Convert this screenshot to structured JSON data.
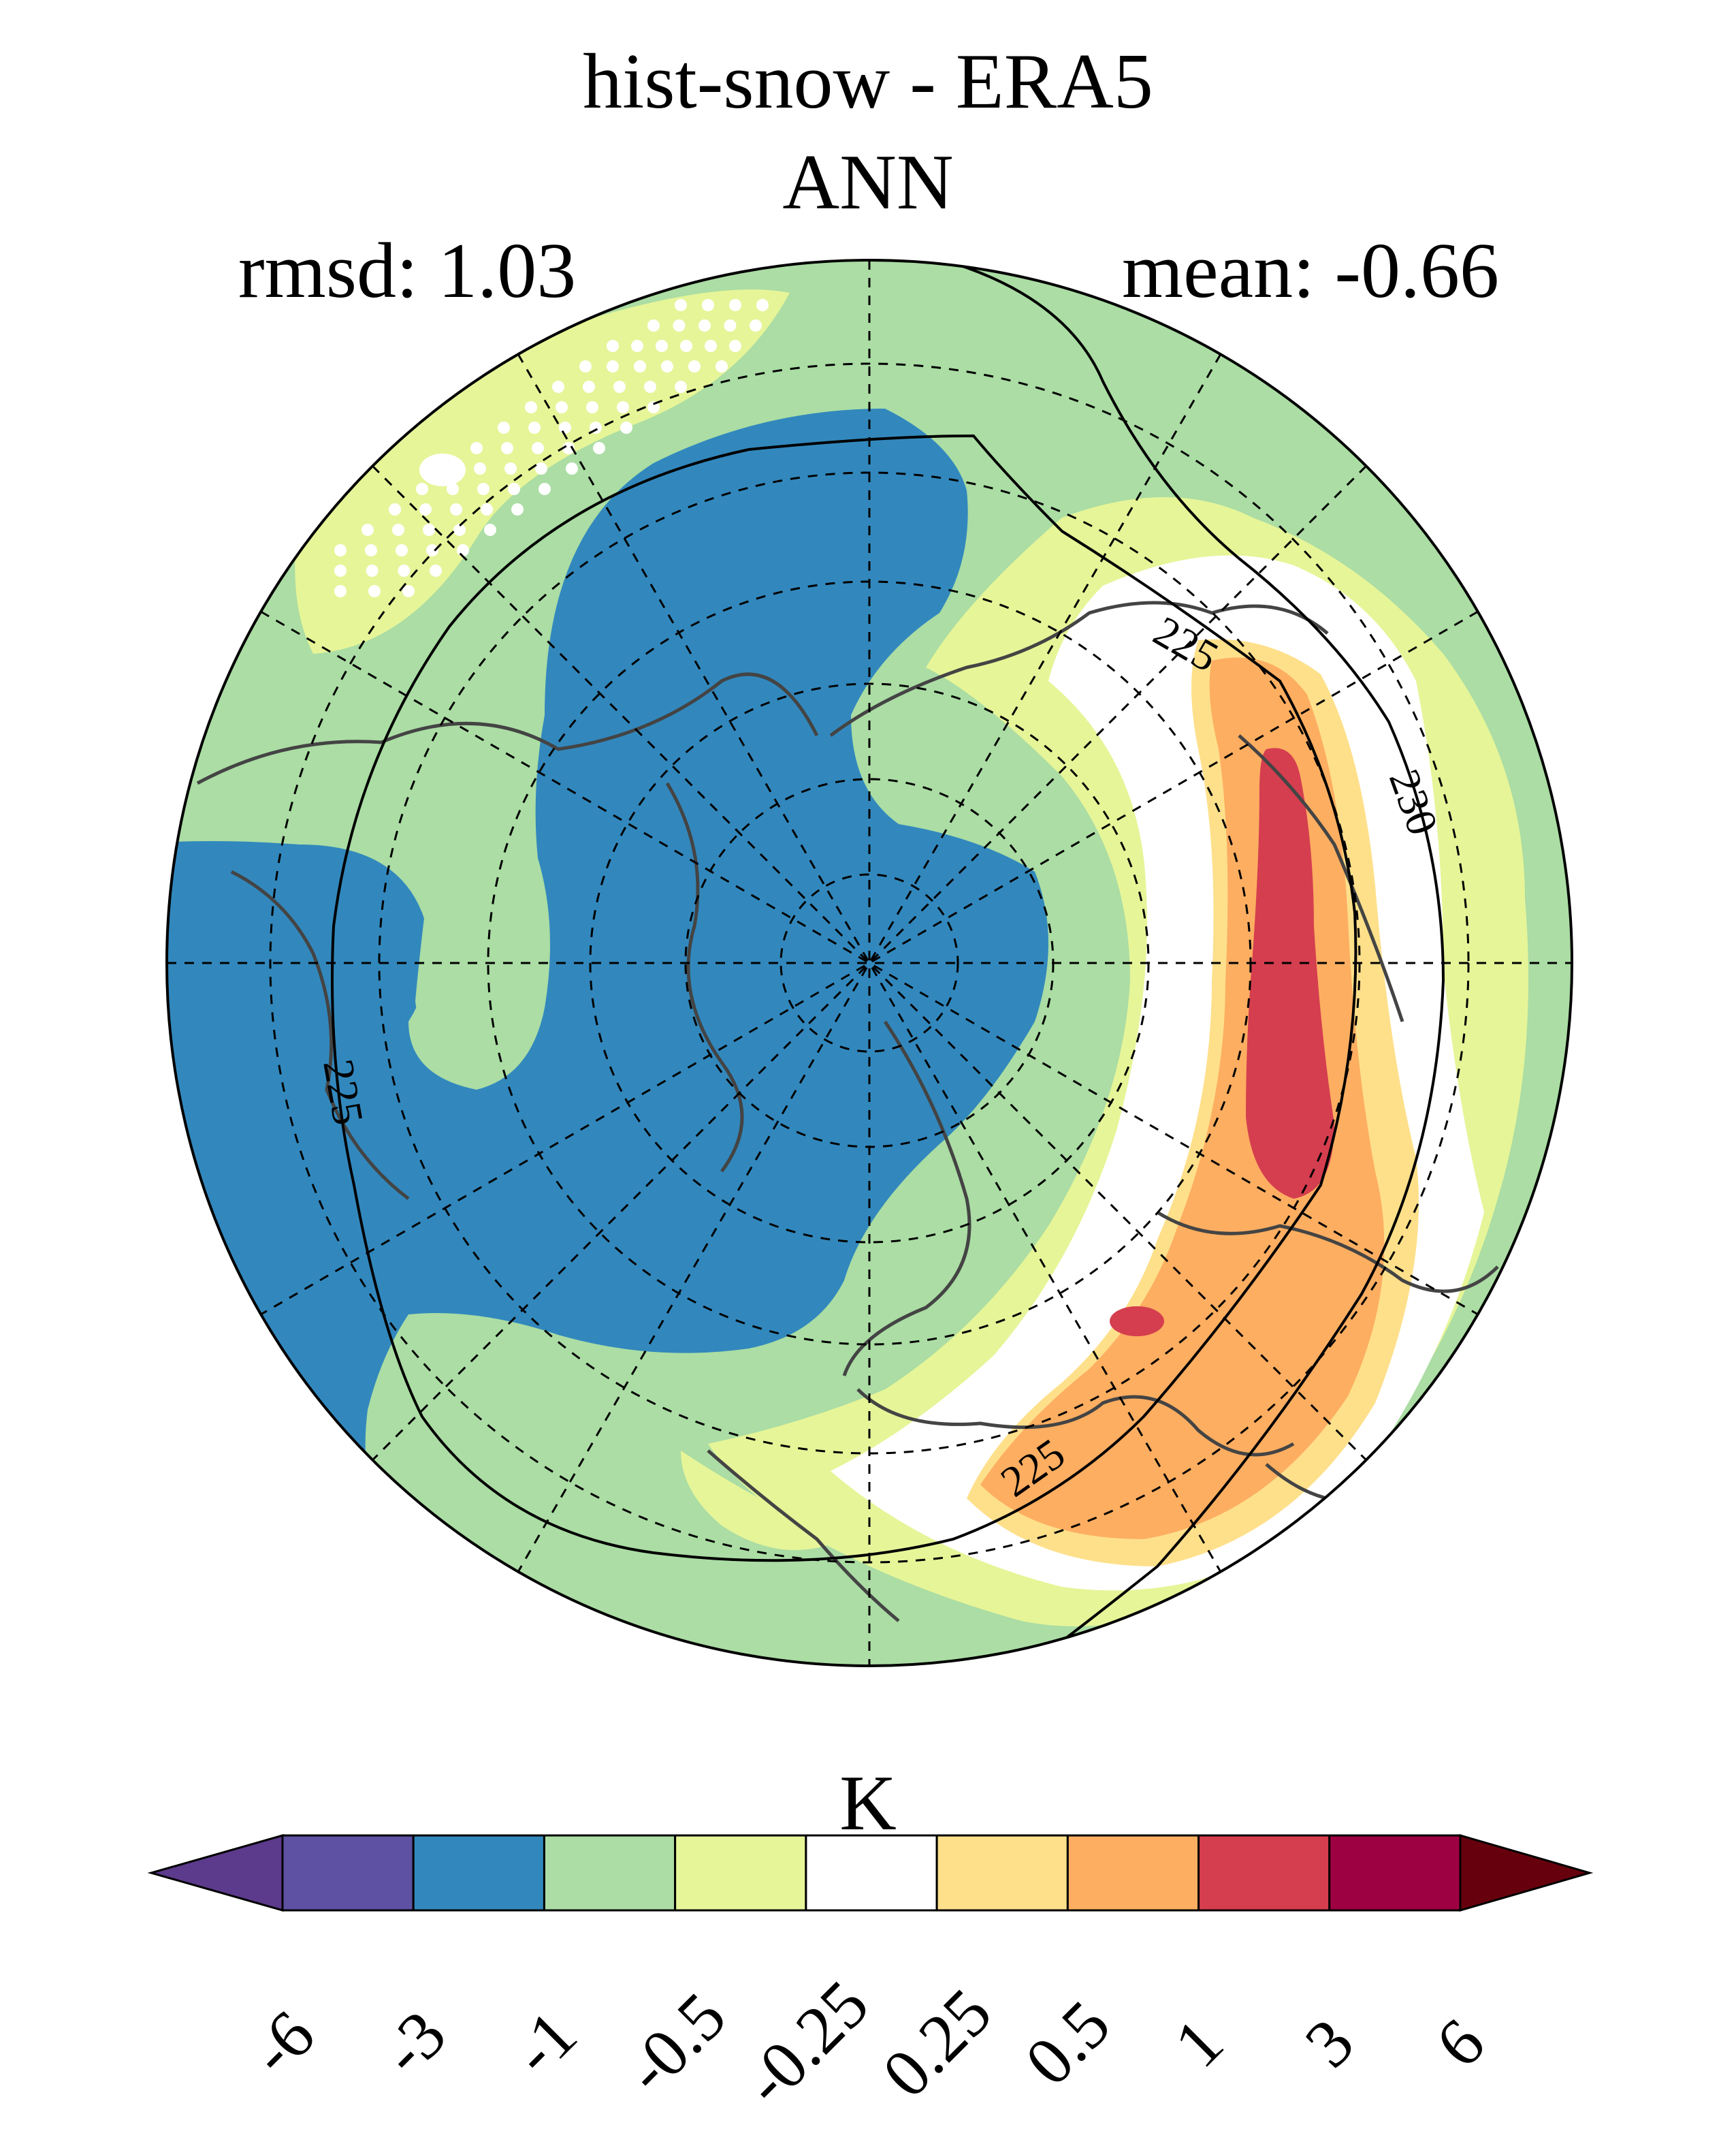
{
  "map": {
    "title": "hist-snow - ERA5",
    "subtitle": "ANN",
    "rmsd_label": "rmsd: 1.03",
    "mean_label": "mean: -0.66",
    "projection": "north-polar-stereographic",
    "stippling": "white dots over western Pacific region",
    "contour_labels": [
      "225",
      "225",
      "230",
      "225"
    ]
  },
  "colorbar": {
    "unit": "K",
    "levels": [
      "-6",
      "-3",
      "-1",
      "-0.5",
      "-0.25",
      "0.25",
      "0.5",
      "1",
      "3",
      "6"
    ],
    "colors": [
      "#5c3a8c",
      "#5e50a2",
      "#3288bd",
      "#abdda4",
      "#e6f598",
      "#ffffff",
      "#fee08b",
      "#fdae61",
      "#d53e4f",
      "#9e0142",
      "#67000d"
    ],
    "extend": "both"
  }
}
